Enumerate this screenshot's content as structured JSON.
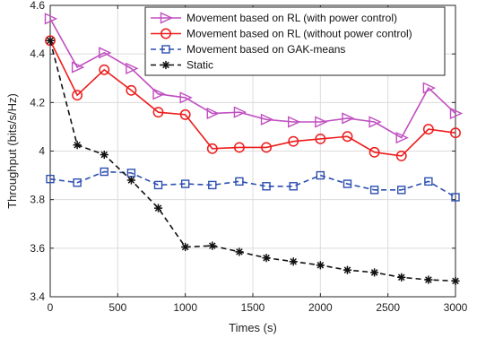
{
  "chart_data": {
    "type": "line",
    "xlabel": "Times (s)",
    "ylabel": "Throughput (bits/s/Hz)",
    "xlim": [
      0,
      3000
    ],
    "ylim": [
      3.4,
      4.6
    ],
    "xticks": [
      0,
      500,
      1000,
      1500,
      2000,
      2500,
      3000
    ],
    "yticks": [
      3.4,
      3.6,
      3.8,
      4,
      4.2,
      4.4,
      4.6
    ],
    "ytick_labels": [
      "3.4",
      "3.6",
      "3.8",
      "4",
      "4.2",
      "4.4",
      "4.6"
    ],
    "grid": true,
    "legend_position": "top-right",
    "x": [
      0,
      200,
      400,
      600,
      800,
      1000,
      1200,
      1400,
      1600,
      1800,
      2000,
      2200,
      2400,
      2600,
      2800,
      3000
    ],
    "series": [
      {
        "name": "Movement based on RL (with power control)",
        "color": "#c04fc0",
        "marker": "triangle-right",
        "line": "solid",
        "values": [
          4.545,
          4.345,
          4.405,
          4.34,
          4.235,
          4.22,
          4.155,
          4.16,
          4.13,
          4.12,
          4.12,
          4.135,
          4.12,
          4.055,
          4.26,
          4.155
        ]
      },
      {
        "name": "Movement based on RL (without power control)",
        "color": "#ee1c1c",
        "marker": "circle",
        "line": "solid",
        "values": [
          4.455,
          4.23,
          4.335,
          4.25,
          4.16,
          4.15,
          4.01,
          4.015,
          4.015,
          4.04,
          4.05,
          4.06,
          3.995,
          3.98,
          4.09,
          4.075
        ]
      },
      {
        "name": "Movement based on GAK-means",
        "color": "#2d4fb0",
        "marker": "square",
        "line": "dashed",
        "values": [
          3.885,
          3.87,
          3.915,
          3.91,
          3.86,
          3.865,
          3.86,
          3.875,
          3.855,
          3.855,
          3.9,
          3.865,
          3.84,
          3.84,
          3.875,
          3.81
        ]
      },
      {
        "name": "Static",
        "color": "#111111",
        "marker": "asterisk",
        "line": "dashed",
        "values": [
          4.455,
          4.025,
          3.985,
          3.88,
          3.765,
          3.605,
          3.61,
          3.585,
          3.56,
          3.545,
          3.53,
          3.51,
          3.5,
          3.48,
          3.47,
          3.465
        ]
      }
    ]
  }
}
